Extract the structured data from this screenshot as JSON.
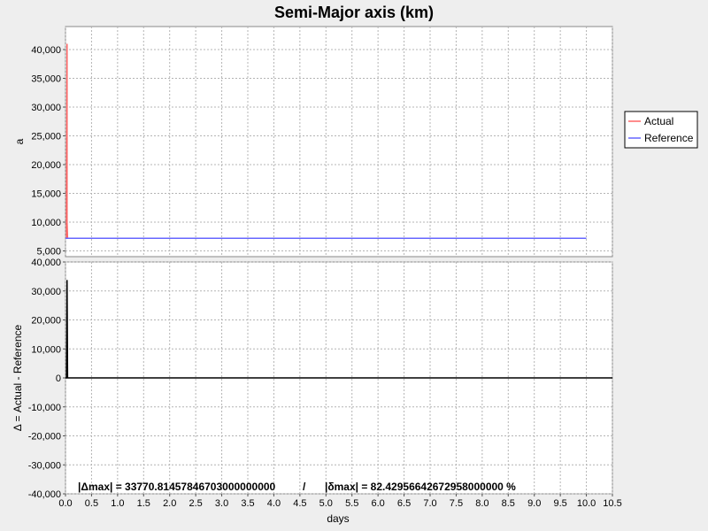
{
  "chart_data": {
    "title": "Semi-Major axis (km)",
    "type": "line",
    "grid": true,
    "legend_position": "right",
    "x": {
      "label": "days",
      "range": [
        0,
        10.5
      ],
      "ticks": [
        0,
        0.5,
        1,
        1.5,
        2,
        2.5,
        3,
        3.5,
        4,
        4.5,
        5,
        5.5,
        6,
        6.5,
        7,
        7.5,
        8,
        8.5,
        9,
        9.5,
        10,
        10.5
      ],
      "tick_labels": [
        "0.0",
        "0.5",
        "1.0",
        "1.5",
        "2.0",
        "2.5",
        "3.0",
        "3.5",
        "4.0",
        "4.5",
        "5.0",
        "5.5",
        "6.0",
        "6.5",
        "7.0",
        "7.5",
        "8.0",
        "8.5",
        "9.0",
        "9.5",
        "10.0",
        "10.5"
      ]
    },
    "panels": [
      {
        "ylabel": "a",
        "ylim": [
          4000,
          44000
        ],
        "yticks": [
          5000,
          10000,
          15000,
          20000,
          25000,
          30000,
          35000,
          40000
        ],
        "ytick_labels": [
          "5,000",
          "10,000",
          "15,000",
          "20,000",
          "25,000",
          "30,000",
          "35,000",
          "40,000"
        ],
        "series": [
          {
            "name": "Actual",
            "color": "#ff6666",
            "x": [
              0.02,
              0.02,
              0.03,
              0.03,
              0.04
            ],
            "y": [
              7200,
              12000,
              41000,
              10000,
              7200
            ]
          },
          {
            "name": "Reference",
            "color": "#6666ff",
            "x": [
              0.0,
              10.0
            ],
            "y": [
              7200,
              7200
            ]
          }
        ]
      },
      {
        "ylabel": "Δ = Actual - Reference",
        "ylim": [
          -40000,
          40000
        ],
        "yticks": [
          -40000,
          -30000,
          -20000,
          -10000,
          0,
          10000,
          20000,
          30000,
          40000
        ],
        "ytick_labels": [
          "-40,000",
          "-30,000",
          "-20,000",
          "-10,000",
          "0",
          "10,000",
          "20,000",
          "30,000",
          "40,000"
        ],
        "series": [
          {
            "name": "Δ",
            "color": "#000000",
            "x": [
              0.0,
              0.02,
              0.03,
              0.04,
              10.5
            ],
            "y": [
              0,
              0,
              33770,
              0,
              0
            ]
          }
        ],
        "annotation": {
          "left": "|Δmax| = 33770.81457846703000000000",
          "separator": "/",
          "right": "|δmax| = 82.42956642672958000000 %"
        }
      }
    ]
  }
}
